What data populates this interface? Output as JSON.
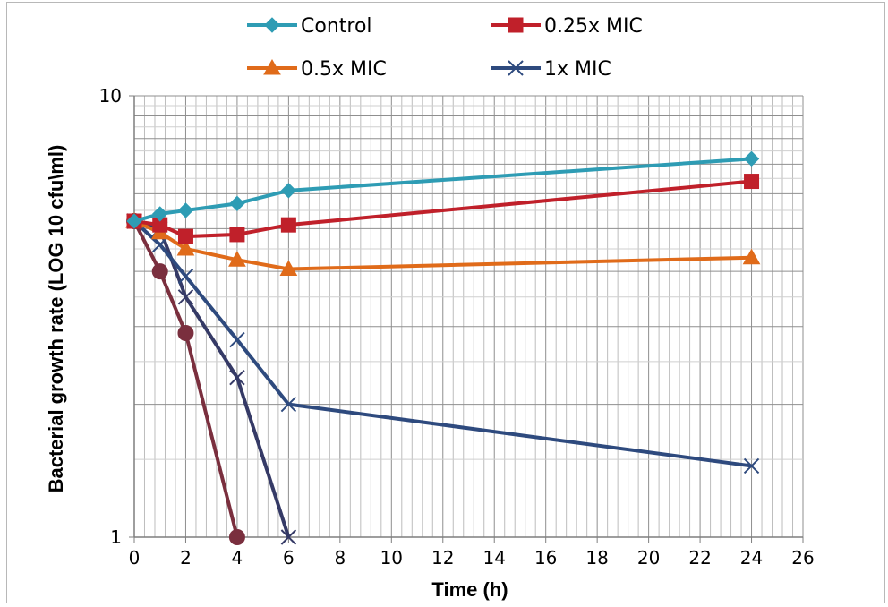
{
  "chart_data": {
    "type": "line",
    "title": "",
    "xlabel": "Time (h)",
    "ylabel": "Bacterial growth rate (LOG 10 cfu\\ml)",
    "xlim": [
      0,
      26
    ],
    "ylim": [
      1,
      10
    ],
    "yscale": "log",
    "x_ticks": [
      0,
      2,
      4,
      6,
      8,
      10,
      12,
      14,
      16,
      18,
      20,
      22,
      24,
      26
    ],
    "y_ticks": [
      1,
      10
    ],
    "grid": true,
    "legend_position": "top",
    "series": [
      {
        "name": "Control",
        "color": "#2e9cb4",
        "marker": "diamond",
        "legend": true,
        "x": [
          0,
          1,
          2,
          4,
          6,
          24
        ],
        "y": [
          5.2,
          5.4,
          5.5,
          5.7,
          6.1,
          7.2
        ]
      },
      {
        "name": "0.25x MIC",
        "color": "#c0202a",
        "marker": "square",
        "legend": true,
        "x": [
          0,
          1,
          2,
          4,
          6,
          24
        ],
        "y": [
          5.2,
          5.1,
          4.8,
          4.85,
          5.1,
          6.4
        ]
      },
      {
        "name": "0.5x MIC",
        "color": "#e06b1a",
        "marker": "triangle",
        "legend": true,
        "x": [
          0,
          1,
          2,
          4,
          6,
          24
        ],
        "y": [
          5.2,
          4.9,
          4.5,
          4.25,
          4.05,
          4.3
        ]
      },
      {
        "name": "1x MIC",
        "color": "#2e4a7e",
        "marker": "x",
        "legend": true,
        "x": [
          0,
          1,
          2,
          4,
          6,
          24
        ],
        "y": [
          5.2,
          4.6,
          3.9,
          2.8,
          2.0,
          1.45
        ]
      },
      {
        "name": "",
        "color": "#353a66",
        "marker": "x",
        "legend": false,
        "x": [
          0,
          1,
          2,
          4,
          6
        ],
        "y": [
          5.2,
          5.0,
          3.5,
          2.3,
          1.0
        ]
      },
      {
        "name": "",
        "color": "#7a2f3e",
        "marker": "circle",
        "legend": false,
        "x": [
          0,
          1,
          2,
          4
        ],
        "y": [
          5.2,
          4.0,
          2.9,
          1.0
        ]
      }
    ]
  }
}
